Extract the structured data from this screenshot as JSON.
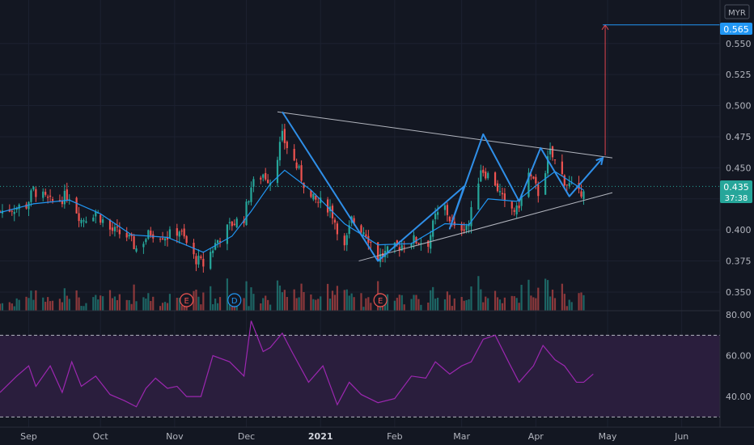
{
  "currency": "MYR",
  "last_price_label": "0.435",
  "countdown_label": "37:38",
  "target_price_label": "0.565",
  "colors": {
    "background": "#131722",
    "up": "#26a69a",
    "down": "#ef5350",
    "ma_line": "#2196f3",
    "pattern_line": "#2f8fe8",
    "trend_line": "#b2b5be",
    "target_arrow": "#e0454f",
    "rsi_line": "#9c27b0",
    "rsi_band": "#2a1e3d",
    "label_blue": "#2196f3",
    "label_teal": "#26a69a"
  },
  "chart_data": [
    {
      "type": "candlestick",
      "title": "",
      "xlabel": "",
      "ylabel": "",
      "ylim": [
        0.335,
        0.585
      ],
      "y_ticks": [
        0.35,
        0.375,
        0.4,
        0.425,
        0.45,
        0.475,
        0.5,
        0.525,
        0.55,
        0.565
      ],
      "y_tick_labels": [
        "0.350",
        "0.375",
        "0.400",
        "0.425",
        "0.450",
        "0.475",
        "0.500",
        "0.525",
        "0.550"
      ],
      "x_ticks": [
        "2020-09-01",
        "2020-10-01",
        "2020-11-01",
        "2020-12-01",
        "2021-01-01",
        "2021-02-01",
        "2021-03-01",
        "2021-04-01",
        "2021-05-01",
        "2021-06-01"
      ],
      "x_tick_labels": [
        "Sep",
        "Oct",
        "Nov",
        "Dec",
        "2021",
        "Feb",
        "Mar",
        "Apr",
        "May",
        "Jun"
      ],
      "x_range": [
        "2020-08-20",
        "2021-06-17"
      ],
      "close_series": [
        [
          "2020-08-20",
          0.415
        ],
        [
          "2020-08-31",
          0.42
        ],
        [
          "2020-09-03",
          0.432
        ],
        [
          "2020-09-10",
          0.422
        ],
        [
          "2020-09-18",
          0.428
        ],
        [
          "2020-09-23",
          0.408
        ],
        [
          "2020-09-29",
          0.415
        ],
        [
          "2020-10-05",
          0.4
        ],
        [
          "2020-10-12",
          0.395
        ],
        [
          "2020-10-16",
          0.385
        ],
        [
          "2020-10-22",
          0.398
        ],
        [
          "2020-10-29",
          0.395
        ],
        [
          "2020-11-03",
          0.4
        ],
        [
          "2020-11-09",
          0.378
        ],
        [
          "2020-11-13",
          0.372
        ],
        [
          "2020-11-19",
          0.392
        ],
        [
          "2020-11-25",
          0.405
        ],
        [
          "2020-11-30",
          0.41
        ],
        [
          "2020-12-03",
          0.435
        ],
        [
          "2020-12-08",
          0.445
        ],
        [
          "2020-12-11",
          0.44
        ],
        [
          "2020-12-16",
          0.475
        ],
        [
          "2020-12-21",
          0.455
        ],
        [
          "2020-12-28",
          0.425
        ],
        [
          "2021-01-05",
          0.418
        ],
        [
          "2021-01-11",
          0.385
        ],
        [
          "2021-01-14",
          0.408
        ],
        [
          "2021-01-20",
          0.398
        ],
        [
          "2021-01-25",
          0.378
        ],
        [
          "2021-02-01",
          0.385
        ],
        [
          "2021-02-08",
          0.392
        ],
        [
          "2021-02-15",
          0.39
        ],
        [
          "2021-02-18",
          0.41
        ],
        [
          "2021-02-22",
          0.418
        ],
        [
          "2021-02-26",
          0.4
        ],
        [
          "2021-03-04",
          0.405
        ],
        [
          "2021-03-09",
          0.45
        ],
        [
          "2021-03-15",
          0.438
        ],
        [
          "2021-03-19",
          0.42
        ],
        [
          "2021-03-24",
          0.415
        ],
        [
          "2021-03-29",
          0.445
        ],
        [
          "2021-04-02",
          0.43
        ],
        [
          "2021-04-07",
          0.462
        ],
        [
          "2021-04-13",
          0.44
        ],
        [
          "2021-04-19",
          0.428
        ],
        [
          "2021-04-21",
          0.435
        ]
      ],
      "ma_series": [
        [
          "2020-08-20",
          0.414
        ],
        [
          "2020-09-03",
          0.421
        ],
        [
          "2020-09-18",
          0.424
        ],
        [
          "2020-10-01",
          0.413
        ],
        [
          "2020-10-14",
          0.396
        ],
        [
          "2020-10-29",
          0.394
        ],
        [
          "2020-11-13",
          0.382
        ],
        [
          "2020-11-25",
          0.395
        ],
        [
          "2020-12-03",
          0.415
        ],
        [
          "2020-12-11",
          0.437
        ],
        [
          "2020-12-17",
          0.448
        ],
        [
          "2020-12-28",
          0.432
        ],
        [
          "2021-01-11",
          0.405
        ],
        [
          "2021-01-25",
          0.388
        ],
        [
          "2021-02-08",
          0.389
        ],
        [
          "2021-02-22",
          0.405
        ],
        [
          "2021-03-04",
          0.404
        ],
        [
          "2021-03-12",
          0.425
        ],
        [
          "2021-03-24",
          0.423
        ],
        [
          "2021-04-02",
          0.437
        ],
        [
          "2021-04-09",
          0.447
        ],
        [
          "2021-04-21",
          0.432
        ]
      ],
      "pattern_path": [
        [
          "2020-12-16",
          0.495
        ],
        [
          "2021-01-25",
          0.375
        ],
        [
          "2021-03-02",
          0.435
        ],
        [
          "2021-02-24",
          0.401
        ],
        [
          "2021-03-10",
          0.477
        ],
        [
          "2021-03-25",
          0.423
        ],
        [
          "2021-04-03",
          0.466
        ],
        [
          "2021-04-15",
          0.427
        ],
        [
          "2021-04-29",
          0.458
        ]
      ],
      "trendlines": [
        {
          "from": [
            "2020-12-14",
            0.495
          ],
          "to": [
            "2021-05-03",
            0.458
          ]
        },
        {
          "from": [
            "2021-01-17",
            0.375
          ],
          "to": [
            "2021-05-03",
            0.43
          ]
        }
      ],
      "target_arrow": {
        "date": "2021-04-30",
        "from": 0.46,
        "to": 0.565
      },
      "target_line": {
        "from_date": "2021-04-29",
        "value": 0.565
      },
      "last_price": 0.435,
      "event_markers": [
        {
          "date": "2020-11-06",
          "label": "E"
        },
        {
          "date": "2020-11-26",
          "label": "D"
        },
        {
          "date": "2021-01-26",
          "label": "E"
        }
      ]
    },
    {
      "type": "line",
      "title": "",
      "xlabel": "",
      "ylabel": "",
      "ylim": [
        25,
        82
      ],
      "y_ticks": [
        40,
        60,
        80
      ],
      "y_tick_labels": [
        "40.00",
        "60.00",
        "80.00"
      ],
      "bands": [
        30,
        70
      ],
      "series": [
        {
          "values": [
            [
              "2020-08-20",
              42
            ],
            [
              "2020-08-27",
              50
            ],
            [
              "2020-09-01",
              55
            ],
            [
              "2020-09-04",
              45
            ],
            [
              "2020-09-10",
              55
            ],
            [
              "2020-09-15",
              42
            ],
            [
              "2020-09-19",
              57
            ],
            [
              "2020-09-23",
              45
            ],
            [
              "2020-09-29",
              50
            ],
            [
              "2020-10-05",
              41
            ],
            [
              "2020-10-11",
              38
            ],
            [
              "2020-10-16",
              35
            ],
            [
              "2020-10-20",
              44
            ],
            [
              "2020-10-24",
              49
            ],
            [
              "2020-10-29",
              44
            ],
            [
              "2020-11-02",
              45
            ],
            [
              "2020-11-06",
              40
            ],
            [
              "2020-11-12",
              40
            ],
            [
              "2020-11-17",
              60
            ],
            [
              "2020-11-24",
              57
            ],
            [
              "2020-11-30",
              50
            ],
            [
              "2020-12-03",
              77
            ],
            [
              "2020-12-08",
              62
            ],
            [
              "2020-12-11",
              64
            ],
            [
              "2020-12-16",
              71
            ],
            [
              "2020-12-20",
              62
            ],
            [
              "2020-12-27",
              47
            ],
            [
              "2021-01-02",
              55
            ],
            [
              "2021-01-08",
              36
            ],
            [
              "2021-01-13",
              47
            ],
            [
              "2021-01-18",
              41
            ],
            [
              "2021-01-25",
              37
            ],
            [
              "2021-02-01",
              39
            ],
            [
              "2021-02-08",
              50
            ],
            [
              "2021-02-14",
              49
            ],
            [
              "2021-02-18",
              57
            ],
            [
              "2021-02-24",
              51
            ],
            [
              "2021-03-01",
              55
            ],
            [
              "2021-03-05",
              57
            ],
            [
              "2021-03-10",
              68
            ],
            [
              "2021-03-15",
              70
            ],
            [
              "2021-03-21",
              56
            ],
            [
              "2021-03-25",
              47
            ],
            [
              "2021-03-31",
              55
            ],
            [
              "2021-04-04",
              65
            ],
            [
              "2021-04-09",
              58
            ],
            [
              "2021-04-13",
              55
            ],
            [
              "2021-04-18",
              47
            ],
            [
              "2021-04-21",
              47
            ],
            [
              "2021-04-25",
              51
            ]
          ]
        }
      ]
    }
  ]
}
